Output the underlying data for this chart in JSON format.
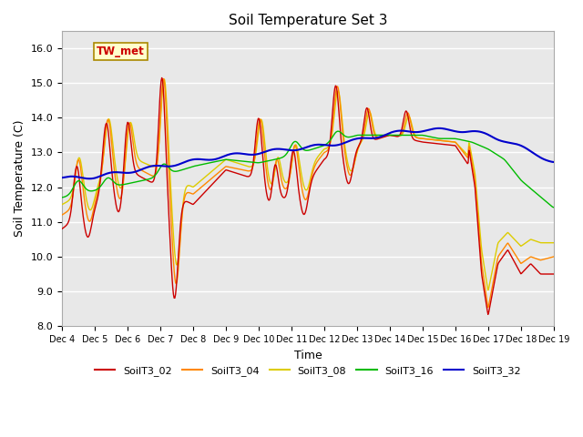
{
  "title": "Soil Temperature Set 3",
  "xlabel": "Time",
  "ylabel": "Soil Temperature (C)",
  "ylim": [
    8.0,
    16.5
  ],
  "yticks": [
    8.0,
    9.0,
    10.0,
    11.0,
    12.0,
    13.0,
    14.0,
    15.0,
    16.0
  ],
  "x_labels": [
    "Dec 4",
    "Dec 5",
    "Dec 6",
    "Dec 7",
    "Dec 8",
    "Dec 9",
    "Dec 10",
    "Dec 11",
    "Dec 12",
    "Dec 13",
    "Dec 14",
    "Dec 15",
    "Dec 16",
    "Dec 17",
    "Dec 18",
    "Dec 19"
  ],
  "annotation_text": "TW_met",
  "bg_color": "#e8e8e8",
  "colors": {
    "SoilT3_02": "#cc0000",
    "SoilT3_04": "#ff8800",
    "SoilT3_08": "#ddcc00",
    "SoilT3_16": "#00bb00",
    "SoilT3_32": "#0000cc"
  },
  "line_width": 1.0
}
